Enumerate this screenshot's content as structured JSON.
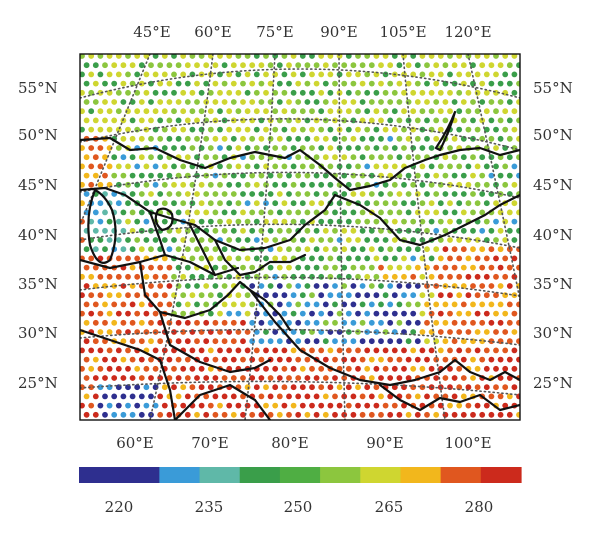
{
  "top_lon_labels": [
    "45°E",
    "60°E",
    "75°E",
    "90°E",
    "105°E",
    "120°E"
  ],
  "bottom_lon_labels": [
    "60°E",
    "70°E",
    "80°E",
    "90°E",
    "100°E"
  ],
  "left_lat_labels": [
    "55°N",
    "50°N",
    "45°N",
    "40°N",
    "35°N",
    "30°N",
    "25°N"
  ],
  "right_lat_labels": [
    "55°N",
    "50°N",
    "45°N",
    "40°N",
    "35°N",
    "30°N",
    "25°N"
  ],
  "colorbar": {
    "colors": [
      "#2e2f8f",
      "#2e2f8f",
      "#3a9bd8",
      "#5fb8a8",
      "#3a9e4a",
      "#4fae43",
      "#8cc63e",
      "#cfd630",
      "#f2b71c",
      "#e0571f",
      "#cc2a1c"
    ],
    "tick_labels": [
      "220",
      "235",
      "250",
      "265",
      "280"
    ]
  },
  "map_colors": {
    "dots": [
      "#2e2f8f",
      "#3a9bd8",
      "#5fb8a8",
      "#3a9e4a",
      "#8cc63e",
      "#cfd630",
      "#f2b71c",
      "#e0571f",
      "#cc2a1c"
    ]
  }
}
